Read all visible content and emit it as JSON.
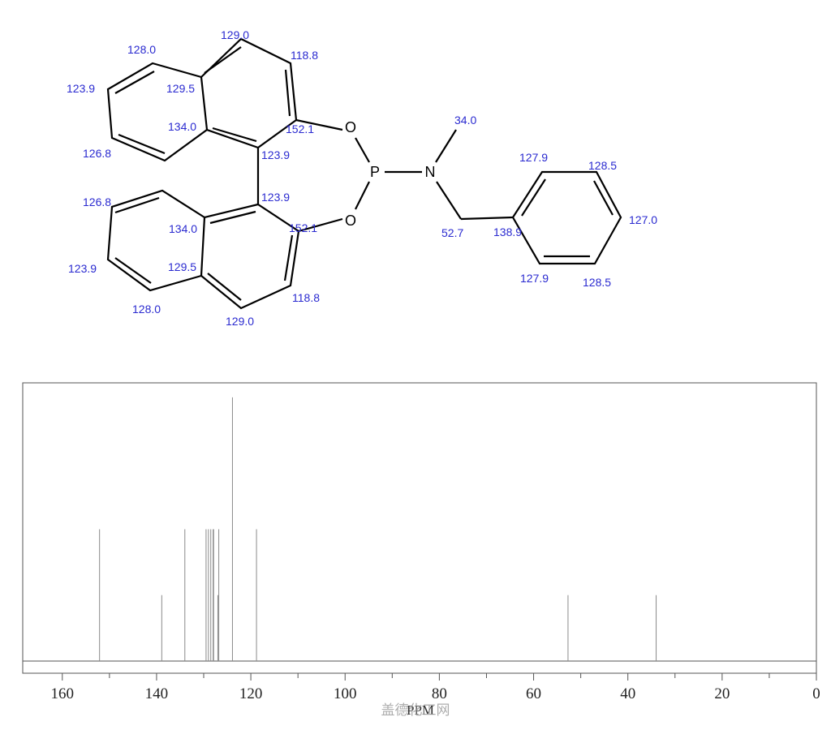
{
  "chart_data": {
    "type": "spectrum",
    "xlabel": "PPM",
    "watermark": "盖德化工网",
    "x": [
      152.1,
      138.9,
      134.0,
      129.5,
      129.0,
      128.5,
      128.0,
      127.9,
      127.0,
      126.8,
      123.9,
      118.8,
      52.7,
      34.0
    ],
    "values": [
      2,
      1,
      2,
      2,
      2,
      2,
      2,
      2,
      1,
      2,
      4,
      2,
      1,
      1
    ],
    "xlim": [
      168.4,
      0
    ],
    "ylim": [
      0,
      4.22
    ],
    "xticks": [
      160,
      140,
      120,
      100,
      80,
      60,
      40,
      20,
      0
    ],
    "xminorticks": [
      150,
      130,
      110,
      90,
      70,
      50,
      30,
      10
    ],
    "color": "#8a8a8a"
  },
  "molecule": {
    "atoms": [
      "O",
      "P",
      "O",
      "N"
    ],
    "shifts": [
      "129.0",
      "118.8",
      "128.0",
      "123.9",
      "129.5",
      "134.0",
      "152.1",
      "123.9",
      "126.8",
      "126.8",
      "123.9",
      "134.0",
      "152.1",
      "129.5",
      "123.9",
      "128.0",
      "129.0",
      "118.8",
      "34.0",
      "127.9",
      "128.5",
      "127.0",
      "52.7",
      "138.9",
      "127.9",
      "128.5"
    ]
  }
}
